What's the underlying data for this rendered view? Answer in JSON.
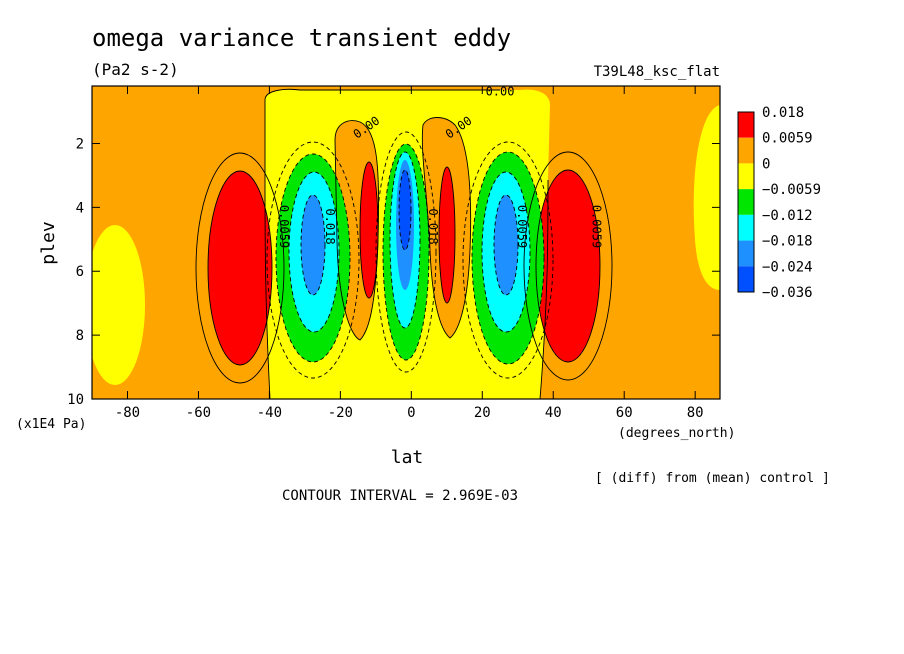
{
  "chart_data": {
    "type": "contour",
    "title": "omega variance transient eddy",
    "units": "(Pa2 s-2)",
    "run_label": "T39L48_ksc_flat",
    "xlabel": "lat",
    "xunits": "(degrees_north)",
    "ylabel": "plev",
    "yunits": "(x1E4 Pa)",
    "xlim": [
      -90,
      87
    ],
    "ylim": [
      10,
      0.2
    ],
    "x_ticks": [
      -80,
      -60,
      -40,
      -20,
      0,
      20,
      40,
      60,
      80
    ],
    "y_ticks": [
      2,
      4,
      6,
      8,
      10
    ],
    "colorbar": {
      "labels": [
        "0.018",
        "0.0059",
        "0",
        "−0.0059",
        "−0.012",
        "−0.018",
        "−0.024",
        "−0.036"
      ],
      "colors": [
        "#ff0000",
        "#ffa500",
        "#ffff00",
        "#00e600",
        "#00ffff",
        "#1e90ff",
        "#0050ff"
      ]
    },
    "contour_labels": [
      {
        "text": "0.00",
        "lat": 25,
        "plev": 0.5
      },
      {
        "text": "0.00",
        "lat": -12,
        "plev": 1.6
      },
      {
        "text": "0.00",
        "lat": 14,
        "plev": 1.6
      },
      {
        "text": "0.0059",
        "lat": -37,
        "plev": 4.6
      },
      {
        "text": "0.0059",
        "lat": 51,
        "plev": 4.6
      },
      {
        "text": "0.018",
        "lat": -24,
        "plev": 4.6
      },
      {
        "text": "0.0059",
        "lat": 30,
        "plev": 4.6
      },
      {
        "text": "0.018",
        "lat": 5,
        "plev": 4.6
      }
    ],
    "contour_interval": "CONTOUR INTERVAL = 2.969E-03",
    "comparison_note": "[ (diff) from (mean) control ]"
  }
}
